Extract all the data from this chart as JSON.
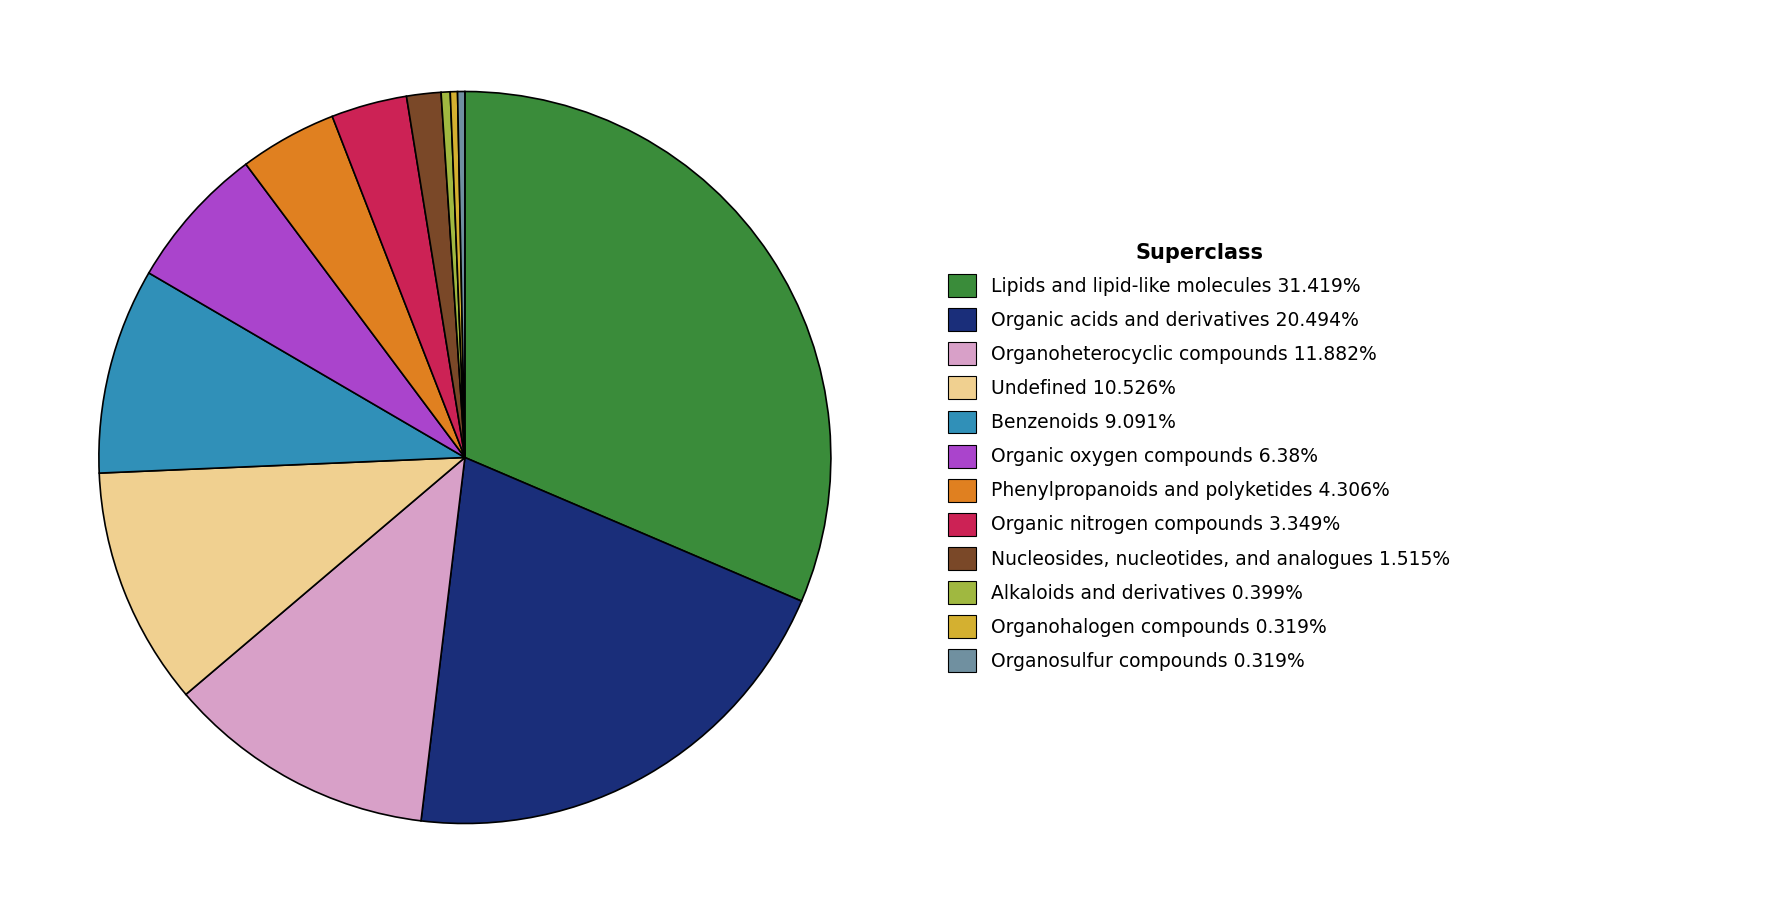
{
  "title": "Superclass",
  "labels": [
    "Lipids and lipid-like molecules 31.419%",
    "Organic acids and derivatives 20.494%",
    "Organoheterocyclic compounds 11.882%",
    "Undefined 10.526%",
    "Benzenoids 9.091%",
    "Organic oxygen compounds 6.38%",
    "Phenylpropanoids and polyketides 4.306%",
    "Organic nitrogen compounds 3.349%",
    "Nucleosides, nucleotides, and analogues 1.515%",
    "Alkaloids and derivatives 0.399%",
    "Organohalogen compounds 0.319%",
    "Organosulfur compounds 0.319%"
  ],
  "values": [
    31.419,
    20.494,
    11.882,
    10.526,
    9.091,
    6.38,
    4.306,
    3.349,
    1.515,
    0.399,
    0.319,
    0.319
  ],
  "colors": [
    "#3a8c3a",
    "#1a2e7a",
    "#d8a0c8",
    "#f0d090",
    "#3090b8",
    "#aa44cc",
    "#e08020",
    "#cc2255",
    "#7a4828",
    "#a0b840",
    "#d4b030",
    "#7090a0"
  ],
  "startangle": 90,
  "figsize": [
    17.88,
    9.15
  ],
  "dpi": 100,
  "legend_fontsize": 13.5,
  "legend_title_fontsize": 15
}
